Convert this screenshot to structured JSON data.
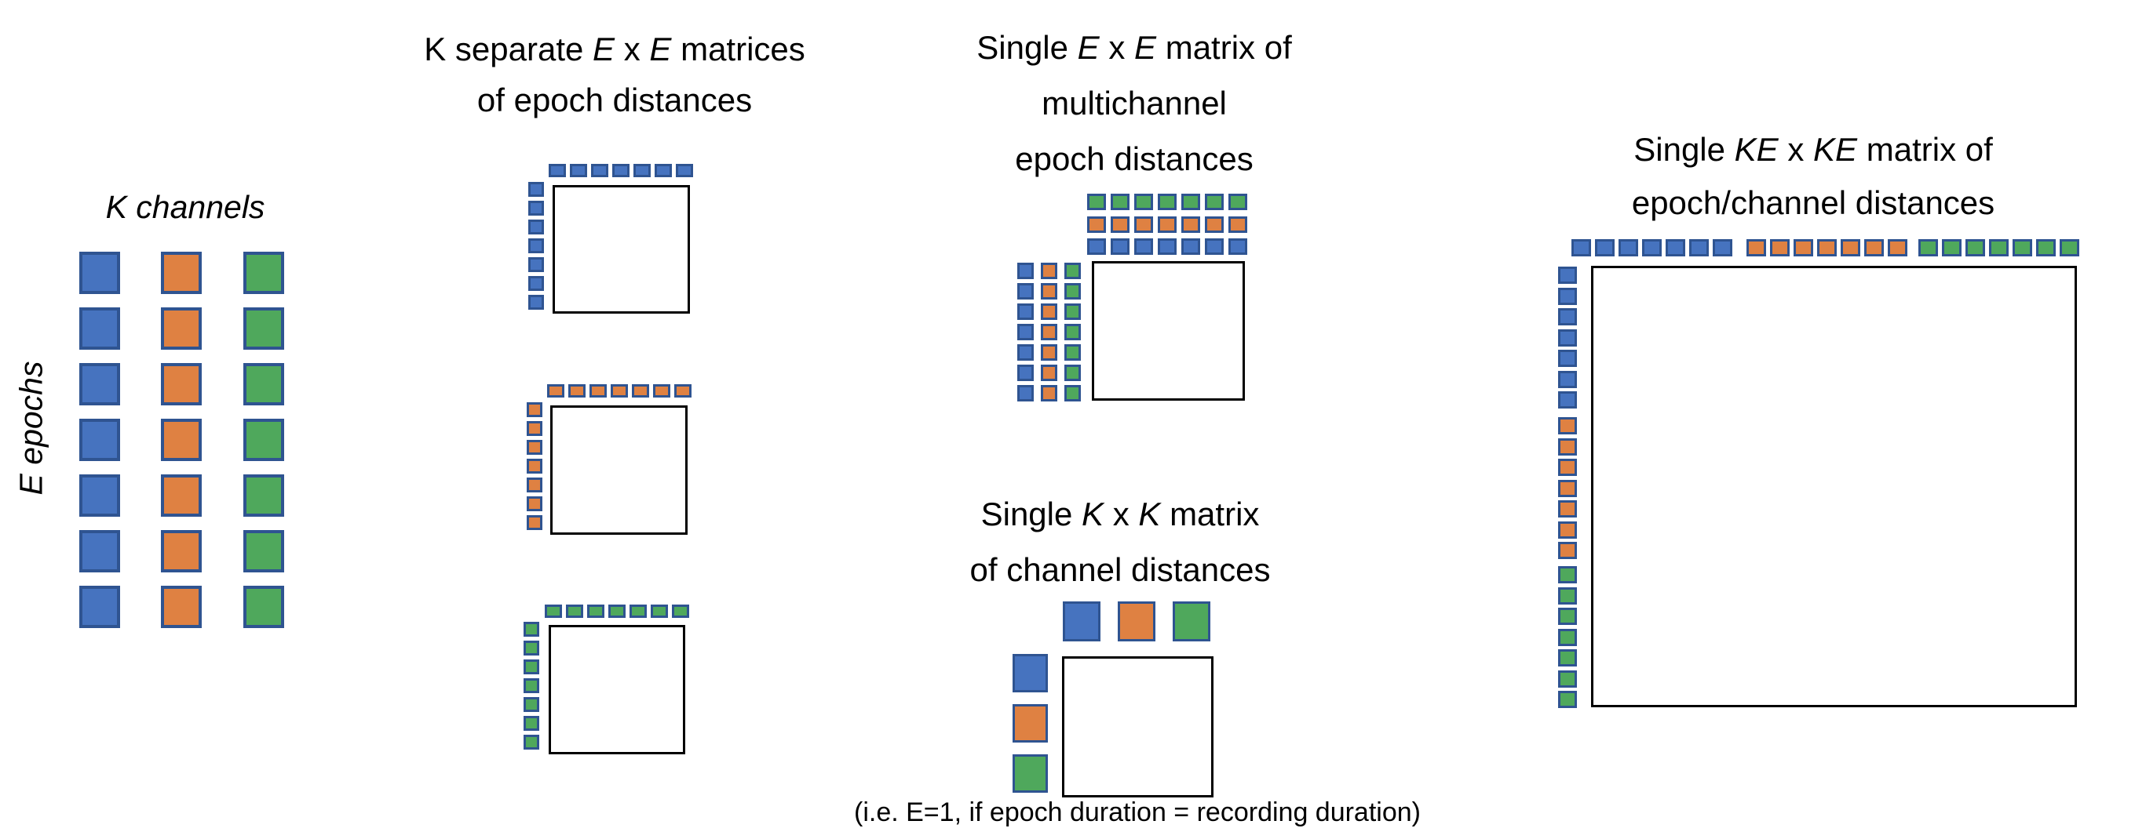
{
  "palette": {
    "blue": "#4673BF",
    "orange": "#DF8142",
    "green": "#4FA85C",
    "square_border": "#2F5491",
    "box_border": "#000000"
  },
  "channel_order": [
    "blue",
    "orange",
    "green"
  ],
  "epochs": 7,
  "labels": {
    "k_channels": "K channels",
    "e_epochs": "E epochs",
    "caption": "(i.e. E=1, if epoch duration = recording duration)"
  },
  "titles": {
    "separate": {
      "p1": "K separate ",
      "p2": "E",
      "p3": " x ",
      "p4": "E",
      "p5": " matrices",
      "line2": "of epoch distances"
    },
    "multichannel": {
      "p1": "Single ",
      "p2": "E",
      "p3": " x ",
      "p4": "E",
      "p5": " matrix of",
      "line2": "multichannel",
      "line3": "epoch distances"
    },
    "channel": {
      "p1": "Single ",
      "p2": "K",
      "p3": " x ",
      "p4": "K",
      "p5": " matrix",
      "line2": "of channel distances"
    },
    "ke": {
      "p1": "Single ",
      "p2": "KE",
      "p3": " x ",
      "p4": "KE",
      "p5": " matrix of",
      "line2": "epoch/channel distances"
    }
  }
}
